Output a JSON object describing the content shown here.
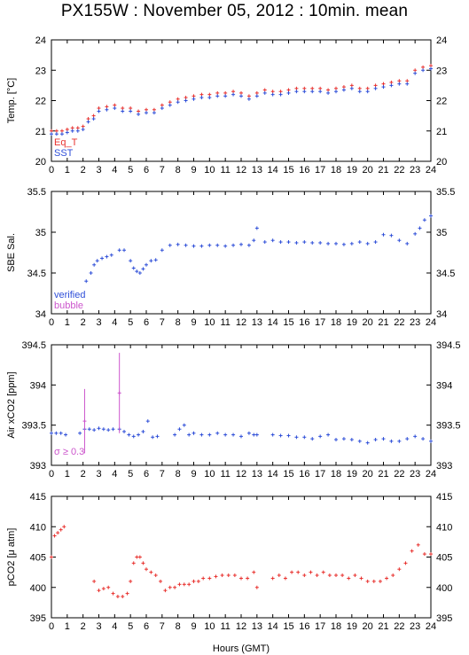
{
  "title": "PX155W : November 05, 2012 : 10min. mean",
  "xlabel": "Hours (GMT)",
  "colors": {
    "red": "#e8322f",
    "blue": "#2f4fd8",
    "violet": "#cc55cc",
    "axis": "#000000"
  },
  "chart_data": [
    {
      "type": "scatter",
      "ylabel": "Temp. [°C]",
      "xlim": [
        0,
        24
      ],
      "ylim": [
        20,
        24
      ],
      "yticks": [
        "20",
        "21",
        "22",
        "23",
        "24"
      ],
      "legend": [
        "Eq_T",
        "SST"
      ],
      "legend_placement": "bottom-left",
      "series": [
        {
          "name": "Eq_T",
          "color": "#e8322f",
          "x": [
            0,
            0.33,
            0.67,
            1,
            1.33,
            1.67,
            2,
            2.33,
            2.67,
            3,
            3.5,
            4,
            4.5,
            5,
            5.5,
            6,
            6.5,
            7,
            7.5,
            8,
            8.5,
            9,
            9.5,
            10,
            10.5,
            11,
            11.5,
            12,
            12.5,
            13,
            13.5,
            14,
            14.5,
            15,
            15.5,
            16,
            16.5,
            17,
            17.5,
            18,
            18.5,
            19,
            19.5,
            20,
            20.5,
            21,
            21.5,
            22,
            22.5,
            23,
            23.5,
            24
          ],
          "y": [
            21.0,
            21.0,
            21.0,
            21.05,
            21.1,
            21.1,
            21.15,
            21.4,
            21.5,
            21.75,
            21.8,
            21.85,
            21.75,
            21.75,
            21.65,
            21.7,
            21.7,
            21.85,
            21.95,
            22.05,
            22.1,
            22.15,
            22.2,
            22.2,
            22.25,
            22.25,
            22.3,
            22.25,
            22.15,
            22.25,
            22.35,
            22.3,
            22.3,
            22.35,
            22.4,
            22.4,
            22.4,
            22.4,
            22.35,
            22.4,
            22.45,
            22.5,
            22.4,
            22.4,
            22.5,
            22.55,
            22.6,
            22.65,
            22.65,
            23.0,
            23.1,
            23.15
          ]
        },
        {
          "name": "SST",
          "color": "#2f4fd8",
          "x": [
            0,
            0.33,
            0.67,
            1,
            1.33,
            1.67,
            2,
            2.33,
            2.67,
            3,
            3.5,
            4,
            4.5,
            5,
            5.5,
            6,
            6.5,
            7,
            7.5,
            8,
            8.5,
            9,
            9.5,
            10,
            10.5,
            11,
            11.5,
            12,
            12.5,
            13,
            13.5,
            14,
            14.5,
            15,
            15.5,
            16,
            16.5,
            17,
            17.5,
            18,
            18.5,
            19,
            19.5,
            20,
            20.5,
            21,
            21.5,
            22,
            22.5,
            23,
            23.5,
            24
          ],
          "y": [
            20.9,
            20.9,
            20.9,
            20.95,
            21.0,
            21.0,
            21.05,
            21.3,
            21.4,
            21.65,
            21.7,
            21.75,
            21.65,
            21.65,
            21.55,
            21.6,
            21.6,
            21.75,
            21.85,
            21.95,
            22.0,
            22.05,
            22.1,
            22.1,
            22.15,
            22.15,
            22.2,
            22.15,
            22.05,
            22.15,
            22.25,
            22.2,
            22.2,
            22.25,
            22.3,
            22.3,
            22.3,
            22.3,
            22.25,
            22.3,
            22.35,
            22.4,
            22.3,
            22.3,
            22.4,
            22.45,
            22.5,
            22.55,
            22.55,
            22.9,
            23.0,
            23.05
          ]
        }
      ]
    },
    {
      "type": "scatter",
      "ylabel": "SBE Sal.",
      "xlim": [
        0,
        24
      ],
      "ylim": [
        34,
        35.5
      ],
      "yticks": [
        "34",
        "34.5",
        "35",
        "35.5"
      ],
      "legend": [
        "verified",
        "bubble"
      ],
      "legend_placement": "bottom-left",
      "series": [
        {
          "name": "verified",
          "color": "#2f4fd8",
          "x": [
            2.2,
            2.5,
            2.7,
            2.9,
            3.2,
            3.5,
            3.8,
            4.3,
            4.6,
            5.0,
            5.2,
            5.4,
            5.6,
            5.8,
            6.0,
            6.3,
            6.6,
            7.0,
            7.5,
            8.0,
            8.5,
            9.0,
            9.5,
            10.0,
            10.5,
            11.0,
            11.5,
            12.0,
            12.5,
            12.8,
            13.0,
            13.5,
            14.0,
            14.5,
            15.0,
            15.5,
            16.0,
            16.5,
            17.0,
            17.5,
            18.0,
            18.5,
            19.0,
            19.5,
            20.0,
            20.5,
            21.0,
            21.5,
            22.0,
            22.5,
            23.0,
            23.3,
            23.6,
            24.0
          ],
          "y": [
            34.4,
            34.5,
            34.6,
            34.65,
            34.68,
            34.7,
            34.72,
            34.78,
            34.78,
            34.65,
            34.56,
            34.52,
            34.5,
            34.55,
            34.6,
            34.65,
            34.66,
            34.78,
            34.84,
            34.85,
            34.84,
            34.83,
            34.83,
            34.84,
            34.84,
            34.83,
            34.84,
            34.85,
            34.84,
            34.9,
            35.05,
            34.88,
            34.9,
            34.88,
            34.88,
            34.87,
            34.88,
            34.87,
            34.87,
            34.86,
            34.86,
            34.85,
            34.86,
            34.88,
            34.86,
            34.88,
            34.97,
            34.96,
            34.9,
            34.86,
            34.98,
            35.05,
            35.15,
            35.2
          ]
        }
      ]
    },
    {
      "type": "scatter",
      "ylabel": "Air xCO2 [ppm]",
      "xlim": [
        0,
        24
      ],
      "ylim": [
        393,
        394.5
      ],
      "yticks": [
        "393",
        "393.5",
        "394",
        "394.5"
      ],
      "annotation": "σ ≥ 0.3",
      "series": [
        {
          "name": "",
          "color": "#2f4fd8",
          "x": [
            0,
            0.3,
            0.6,
            0.9,
            1.8,
            2.1,
            2.4,
            2.7,
            3.0,
            3.3,
            3.6,
            3.9,
            4.3,
            4.6,
            4.9,
            5.2,
            5.5,
            5.8,
            6.1,
            6.4,
            6.7,
            7.8,
            8.1,
            8.4,
            8.7,
            9.0,
            9.5,
            10.0,
            10.5,
            11.0,
            11.5,
            12.0,
            12.5,
            12.8,
            13.0,
            14.0,
            14.5,
            15.0,
            15.5,
            16.0,
            16.5,
            17.0,
            17.5,
            18.0,
            18.5,
            19.0,
            19.5,
            20.0,
            20.5,
            21.0,
            21.5,
            22.0,
            22.5,
            23.0,
            23.5,
            24.0
          ],
          "y": [
            393.4,
            393.4,
            393.4,
            393.38,
            393.4,
            393.45,
            393.45,
            393.44,
            393.46,
            393.45,
            393.44,
            393.45,
            393.45,
            393.42,
            393.38,
            393.36,
            393.38,
            393.42,
            393.55,
            393.35,
            393.36,
            393.38,
            393.45,
            393.5,
            393.38,
            393.4,
            393.38,
            393.38,
            393.4,
            393.38,
            393.38,
            393.36,
            393.4,
            393.38,
            393.38,
            393.38,
            393.37,
            393.37,
            393.35,
            393.35,
            393.33,
            393.36,
            393.38,
            393.32,
            393.33,
            393.32,
            393.3,
            393.28,
            393.32,
            393.33,
            393.3,
            393.3,
            393.33,
            393.36,
            393.33,
            393.3
          ]
        },
        {
          "name": "",
          "color": "#cc55cc",
          "x": [
            2.1,
            4.3
          ],
          "y": [
            393.55,
            393.9
          ],
          "err": [
            0.4,
            0.5
          ]
        }
      ]
    },
    {
      "type": "scatter",
      "ylabel": "pCO2 [μ atm]",
      "xlim": [
        0,
        24
      ],
      "ylim": [
        395,
        415
      ],
      "yticks": [
        "395",
        "400",
        "405",
        "410",
        "415"
      ],
      "series": [
        {
          "name": "",
          "color": "#e8322f",
          "x": [
            0,
            0.2,
            0.4,
            0.6,
            0.8,
            2.7,
            3.0,
            3.3,
            3.6,
            3.9,
            4.2,
            4.5,
            4.8,
            5.0,
            5.2,
            5.4,
            5.6,
            5.8,
            6.0,
            6.3,
            6.6,
            6.9,
            7.2,
            7.5,
            7.8,
            8.1,
            8.4,
            8.7,
            9.0,
            9.3,
            9.6,
            10.0,
            10.4,
            10.8,
            11.2,
            11.6,
            12.0,
            12.4,
            12.8,
            13.0,
            14.0,
            14.4,
            14.8,
            15.2,
            15.6,
            16.0,
            16.4,
            16.8,
            17.2,
            17.6,
            18.0,
            18.4,
            18.8,
            19.2,
            19.6,
            20.0,
            20.4,
            20.8,
            21.2,
            21.6,
            22.0,
            22.4,
            22.8,
            23.2,
            23.6,
            24.0
          ],
          "y": [
            405,
            408.5,
            409,
            409.5,
            410,
            401,
            399.5,
            399.8,
            400,
            399,
            398.5,
            398.5,
            399,
            401,
            404,
            405,
            405,
            404,
            403,
            402.5,
            402,
            401,
            399.5,
            400,
            400,
            400.5,
            400.5,
            400.5,
            401,
            401,
            401.5,
            401.5,
            401.8,
            402,
            402,
            402,
            401.5,
            401.5,
            402.5,
            400,
            401.5,
            402,
            401.5,
            402.5,
            402.5,
            402,
            402.5,
            402,
            402.5,
            402,
            402,
            402,
            401.5,
            402,
            401.5,
            401,
            401,
            401,
            401.5,
            402,
            403,
            404,
            406,
            407,
            405.5,
            405.5
          ]
        }
      ]
    }
  ]
}
